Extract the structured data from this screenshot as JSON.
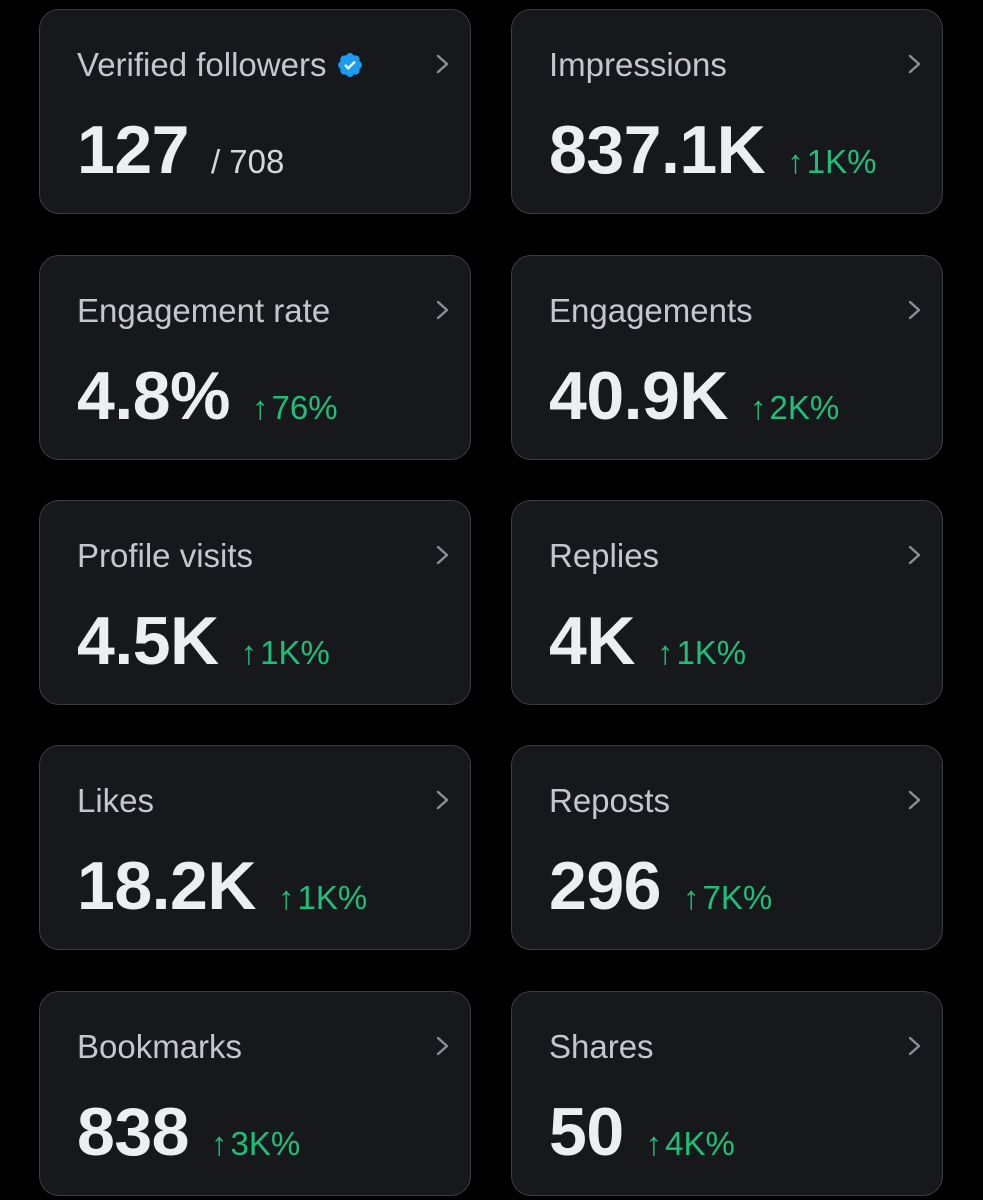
{
  "colors": {
    "background": "#000000",
    "card_background": "#16181c",
    "card_border": "#3a3d42",
    "title_text": "#c4c7cb",
    "value_text": "#eceff1",
    "positive_change": "#1fbf7a",
    "verified_badge": "#1d9bf0"
  },
  "icons": {
    "change_arrow": "↑",
    "chevron": "chevron-right-icon",
    "verified": "verified-badge-icon"
  },
  "cards": [
    {
      "title": "Verified followers",
      "value": "127",
      "total": "/ 708"
    },
    {
      "title": "Impressions",
      "value": "837.1K",
      "change": "1K%"
    },
    {
      "title": "Engagement rate",
      "value": "4.8%",
      "change": "76%"
    },
    {
      "title": "Engagements",
      "value": "40.9K",
      "change": "2K%"
    },
    {
      "title": "Profile visits",
      "value": "4.5K",
      "change": "1K%"
    },
    {
      "title": "Replies",
      "value": "4K",
      "change": "1K%"
    },
    {
      "title": "Likes",
      "value": "18.2K",
      "change": "1K%"
    },
    {
      "title": "Reposts",
      "value": "296",
      "change": "7K%"
    },
    {
      "title": "Bookmarks",
      "value": "838",
      "change": "3K%"
    },
    {
      "title": "Shares",
      "value": "50",
      "change": "4K%"
    }
  ]
}
